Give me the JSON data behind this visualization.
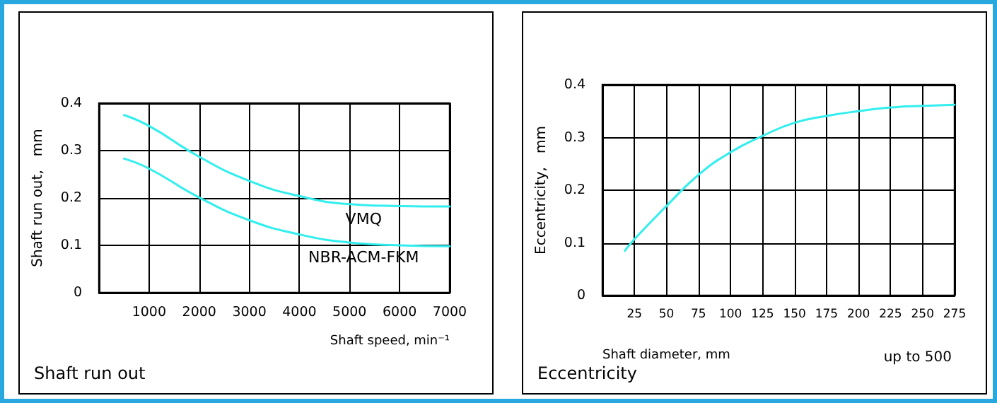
{
  "chart_data": [
    {
      "type": "line",
      "title": "Shaft run out",
      "xlabel": "Shaft speed, min⁻¹",
      "ylabel": "Shaft run out,   mm",
      "xlim": [
        0,
        7000
      ],
      "xticks": [
        1000,
        2000,
        3000,
        4000,
        5000,
        6000,
        7000
      ],
      "ylim": [
        0,
        0.4
      ],
      "yticks": [
        0,
        0.1,
        0.2,
        0.3,
        0.4
      ],
      "grid": true,
      "marker": "none",
      "line_style": "solid",
      "x": [
        500,
        1000,
        2000,
        3000,
        4000,
        5000,
        6000,
        7000
      ],
      "series": [
        {
          "name": "VMQ",
          "color": "#33eeee",
          "values": [
            0.375,
            0.352,
            0.287,
            0.236,
            0.204,
            0.187,
            0.183,
            0.182
          ]
        },
        {
          "name": "NBR-ACM-FKM",
          "color": "#33eeee",
          "values": [
            0.283,
            0.262,
            0.201,
            0.153,
            0.123,
            0.106,
            0.1,
            0.098
          ]
        }
      ]
    },
    {
      "type": "line",
      "title": "Eccentricity",
      "xlabel": "Shaft diameter, mm",
      "ylabel": "Eccentricity,   mm",
      "annotations": [
        "up to 500"
      ],
      "xlim": [
        0,
        275
      ],
      "xticks": [
        25,
        50,
        75,
        100,
        125,
        150,
        175,
        200,
        225,
        250,
        275
      ],
      "ylim": [
        0,
        0.4
      ],
      "yticks": [
        0,
        0.1,
        0.2,
        0.3,
        0.4
      ],
      "grid": true,
      "marker": "none",
      "line_style": "solid",
      "x": [
        17.5,
        25,
        50,
        75,
        100,
        125,
        150,
        175,
        200,
        225,
        250,
        275
      ],
      "series": [
        {
          "color": "#33eeee",
          "values": [
            0.085,
            0.107,
            0.17,
            0.229,
            0.272,
            0.303,
            0.328,
            0.341,
            0.35,
            0.357,
            0.36,
            0.362
          ]
        }
      ]
    }
  ]
}
